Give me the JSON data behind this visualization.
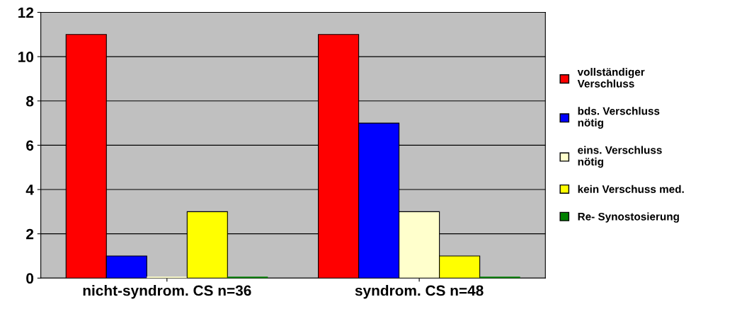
{
  "chart_data": {
    "type": "bar",
    "categories": [
      "nicht-syndrom. CS n=36",
      "syndrom. CS n=48"
    ],
    "series": [
      {
        "name": "vollständiger\nVerschluss",
        "color": "#ff0000",
        "values": [
          11,
          11
        ]
      },
      {
        "name": "bds. Verschluss\nnötig",
        "color": "#0000ff",
        "values": [
          1,
          7
        ]
      },
      {
        "name": "eins. Verschluss\nnötig",
        "color": "#ffffcc",
        "values": [
          0,
          3
        ]
      },
      {
        "name": "kein Verschuss med.",
        "color": "#ffff00",
        "values": [
          3,
          1
        ]
      },
      {
        "name": "Re- Synostosierung",
        "color": "#008000",
        "values": [
          0,
          0
        ]
      }
    ],
    "ylim": [
      0,
      12
    ],
    "yticks": [
      0,
      2,
      4,
      6,
      8,
      10,
      12
    ],
    "grid": "y",
    "legend": "right"
  }
}
